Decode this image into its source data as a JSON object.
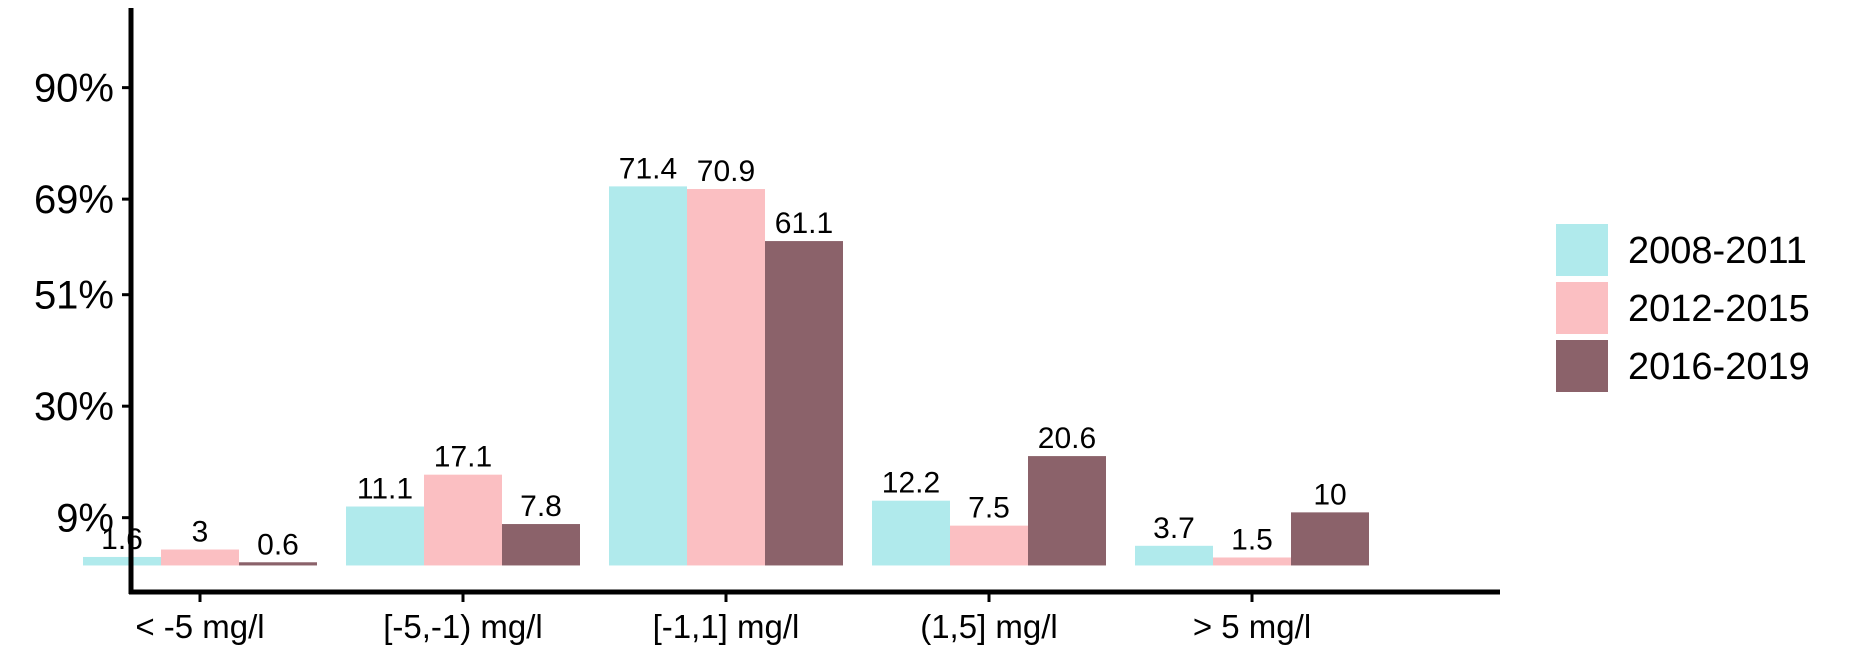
{
  "chart_data": {
    "type": "bar",
    "categories": [
      "< -5 mg/l",
      "[-5,-1) mg/l",
      "[-1,1] mg/l",
      "(1,5] mg/l",
      "> 5 mg/l"
    ],
    "series": [
      {
        "name": "2008-2011",
        "color": "#b0eaec",
        "values": [
          1.6,
          11.1,
          71.4,
          12.2,
          3.7
        ]
      },
      {
        "name": "2012-2015",
        "color": "#fbbfc2",
        "values": [
          3,
          17.1,
          70.9,
          7.5,
          1.5
        ]
      },
      {
        "name": "2016-2019",
        "color": "#8b626a",
        "values": [
          0.6,
          7.8,
          61.1,
          20.6,
          10
        ]
      }
    ],
    "data_labels": [
      [
        "1.6",
        "3",
        "0.6"
      ],
      [
        "11.1",
        "17.1",
        "7.8"
      ],
      [
        "71.4",
        "70.9",
        "61.1"
      ],
      [
        "12.2",
        "7.5",
        "20.6"
      ],
      [
        "3.7",
        "1.5",
        "10"
      ]
    ],
    "y_ticks": [
      {
        "value": 9,
        "label": "9%"
      },
      {
        "value": 30,
        "label": "30%"
      },
      {
        "value": 51,
        "label": "51%"
      },
      {
        "value": 69,
        "label": "69%"
      },
      {
        "value": 90,
        "label": "90%"
      }
    ],
    "ylim": [
      -5,
      105
    ],
    "title": "",
    "xlabel": "",
    "ylabel": "",
    "grid": false,
    "legend_position": "right"
  }
}
